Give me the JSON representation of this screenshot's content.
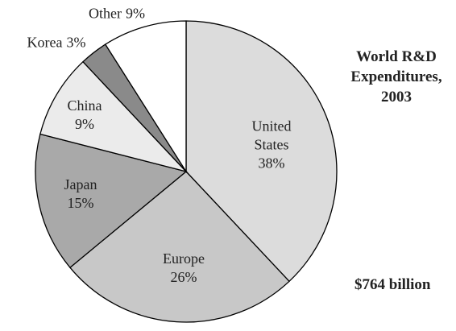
{
  "chart_data": {
    "type": "pie",
    "title": "World R&D Expenditures, 2003",
    "annotation": "$764 billion",
    "categories": [
      "United States",
      "Europe",
      "Japan",
      "China",
      "Korea",
      "Other"
    ],
    "values": [
      38,
      26,
      15,
      9,
      3,
      9
    ],
    "value_labels": [
      "38%",
      "26%",
      "15%",
      "9%",
      "3%",
      "9%"
    ],
    "colors": [
      "#dcdcdc",
      "#c8c8c8",
      "#a9a9a9",
      "#ebebeb",
      "#8a8a8a",
      "#ffffff"
    ]
  }
}
